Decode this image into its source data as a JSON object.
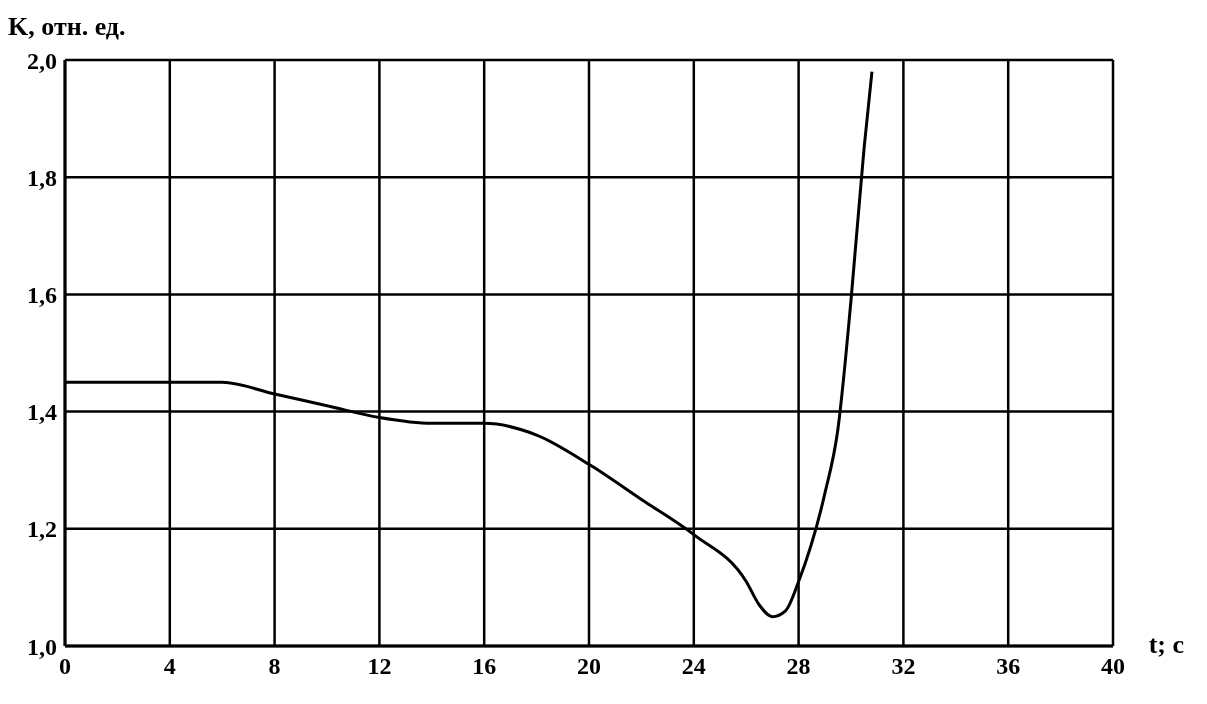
{
  "chart_data": {
    "type": "line",
    "ylabel": "K, отн. ед.",
    "xlabel": "t; с",
    "x": [
      0,
      6,
      8,
      10,
      12,
      14,
      16,
      18,
      20,
      22,
      24,
      26,
      26.5,
      27,
      27.5,
      28,
      29,
      29.5,
      30,
      30.5,
      30.8
    ],
    "series": [
      {
        "color": "#000000",
        "values": [
          1.45,
          1.45,
          1.43,
          1.41,
          1.39,
          1.38,
          1.38,
          1.36,
          1.31,
          1.25,
          1.19,
          1.11,
          1.07,
          1.05,
          1.06,
          1.11,
          1.26,
          1.37,
          1.59,
          1.85,
          1.98
        ]
      }
    ],
    "xlim": [
      0,
      40
    ],
    "xticks": [
      0,
      4,
      8,
      12,
      16,
      20,
      24,
      28,
      32,
      36,
      40
    ],
    "ylim": [
      1.0,
      2.0
    ],
    "yticks": [
      {
        "value": 1.0,
        "label": "1,0"
      },
      {
        "value": 1.2,
        "label": "1,2"
      },
      {
        "value": 1.4,
        "label": "1,4"
      },
      {
        "value": 1.6,
        "label": "1,6"
      },
      {
        "value": 1.8,
        "label": "1,8"
      },
      {
        "value": 2.0,
        "label": "2,0"
      }
    ],
    "grid": true
  }
}
